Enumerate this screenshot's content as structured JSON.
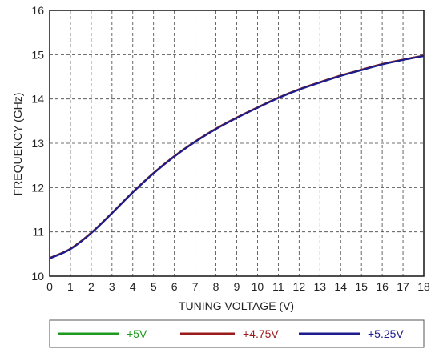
{
  "chart_data": {
    "type": "line",
    "xlabel": "TUNING VOLTAGE (V)",
    "ylabel": "FREQUENCY (GHz)",
    "xlim": [
      0,
      18
    ],
    "ylim": [
      10,
      16
    ],
    "xticks": [
      "0",
      "1",
      "2",
      "3",
      "4",
      "5",
      "6",
      "7",
      "8",
      "9",
      "10",
      "11",
      "12",
      "13",
      "14",
      "15",
      "16",
      "17",
      "18"
    ],
    "yticks": [
      "10",
      "11",
      "12",
      "13",
      "14",
      "15",
      "16"
    ],
    "grid": true,
    "grid_style": "dashed",
    "legend_position": "bottom",
    "x": [
      0,
      1,
      2,
      3,
      4,
      5,
      6,
      7,
      8,
      9,
      10,
      11,
      12,
      13,
      14,
      15,
      16,
      17,
      18
    ],
    "series": [
      {
        "name": "+5V",
        "color": "#1f9a1f",
        "values": [
          10.41,
          10.62,
          10.98,
          11.43,
          11.9,
          12.33,
          12.71,
          13.04,
          13.33,
          13.58,
          13.81,
          14.03,
          14.22,
          14.38,
          14.53,
          14.66,
          14.79,
          14.89,
          14.98
        ]
      },
      {
        "name": "+4.75V",
        "color": "#9b1b1b",
        "values": [
          10.41,
          10.62,
          10.98,
          11.43,
          11.9,
          12.33,
          12.71,
          13.04,
          13.33,
          13.58,
          13.81,
          14.03,
          14.22,
          14.38,
          14.53,
          14.66,
          14.79,
          14.89,
          14.98
        ]
      },
      {
        "name": "+5.25V",
        "color": "#1c1c8c",
        "values": [
          10.4,
          10.61,
          10.97,
          11.42,
          11.89,
          12.32,
          12.7,
          13.03,
          13.32,
          13.57,
          13.8,
          14.02,
          14.21,
          14.37,
          14.52,
          14.65,
          14.78,
          14.88,
          14.97
        ]
      }
    ]
  }
}
